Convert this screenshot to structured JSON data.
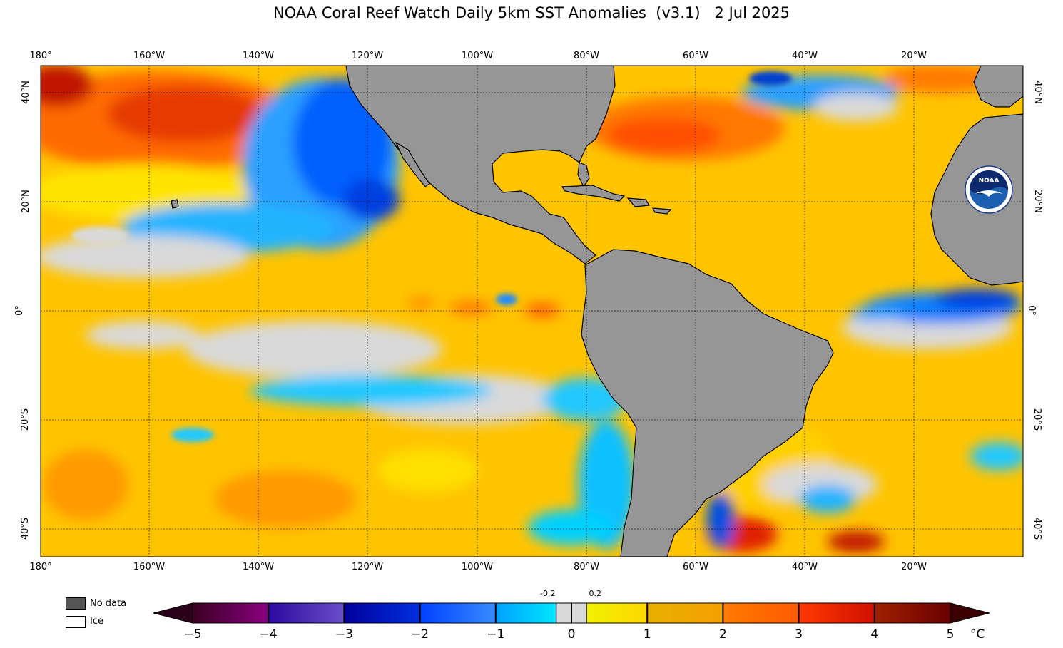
{
  "title": "NOAA Coral Reef Watch Daily 5km SST Anomalies  (v3.1)   2 Jul 2025",
  "map": {
    "lon_labels": [
      "180°",
      "160°W",
      "140°W",
      "120°W",
      "100°W",
      "80°W",
      "60°W",
      "40°W",
      "20°W"
    ],
    "lat_labels": [
      "40°N",
      "20°N",
      "0°",
      "20°S",
      "40°S"
    ],
    "land_color": "#969696",
    "nodata_color": "#555555",
    "ice_color": "#ffffff"
  },
  "legend": {
    "nodata_label": "No data",
    "ice_label": "Ice"
  },
  "colorbar": {
    "ticks": [
      "−5",
      "−4",
      "−3",
      "−2",
      "−1",
      "0",
      "1",
      "2",
      "3",
      "4",
      "5"
    ],
    "small_labels": [
      "-0.2",
      "0.2"
    ],
    "unit": "°C",
    "segments": [
      {
        "from": "#3a0022",
        "to": "#8a0080"
      },
      {
        "from": "#2a0aa0",
        "to": "#6a50c8"
      },
      {
        "from": "#00009a",
        "to": "#0030e0"
      },
      {
        "from": "#0040ff",
        "to": "#3a8cff"
      },
      {
        "from": "#00a0ff",
        "to": "#00e6ff"
      },
      {
        "from": "#d9d9d9",
        "to": "#d9d9d9"
      },
      {
        "from": "#f0f000",
        "to": "#ffd800"
      },
      {
        "from": "#e8b000",
        "to": "#f5a000"
      },
      {
        "from": "#ff7a00",
        "to": "#ff5a00"
      },
      {
        "from": "#ff3a00",
        "to": "#d01000"
      },
      {
        "from": "#a02000",
        "to": "#6a0000"
      }
    ]
  },
  "logo": {
    "text": "NOAA"
  }
}
